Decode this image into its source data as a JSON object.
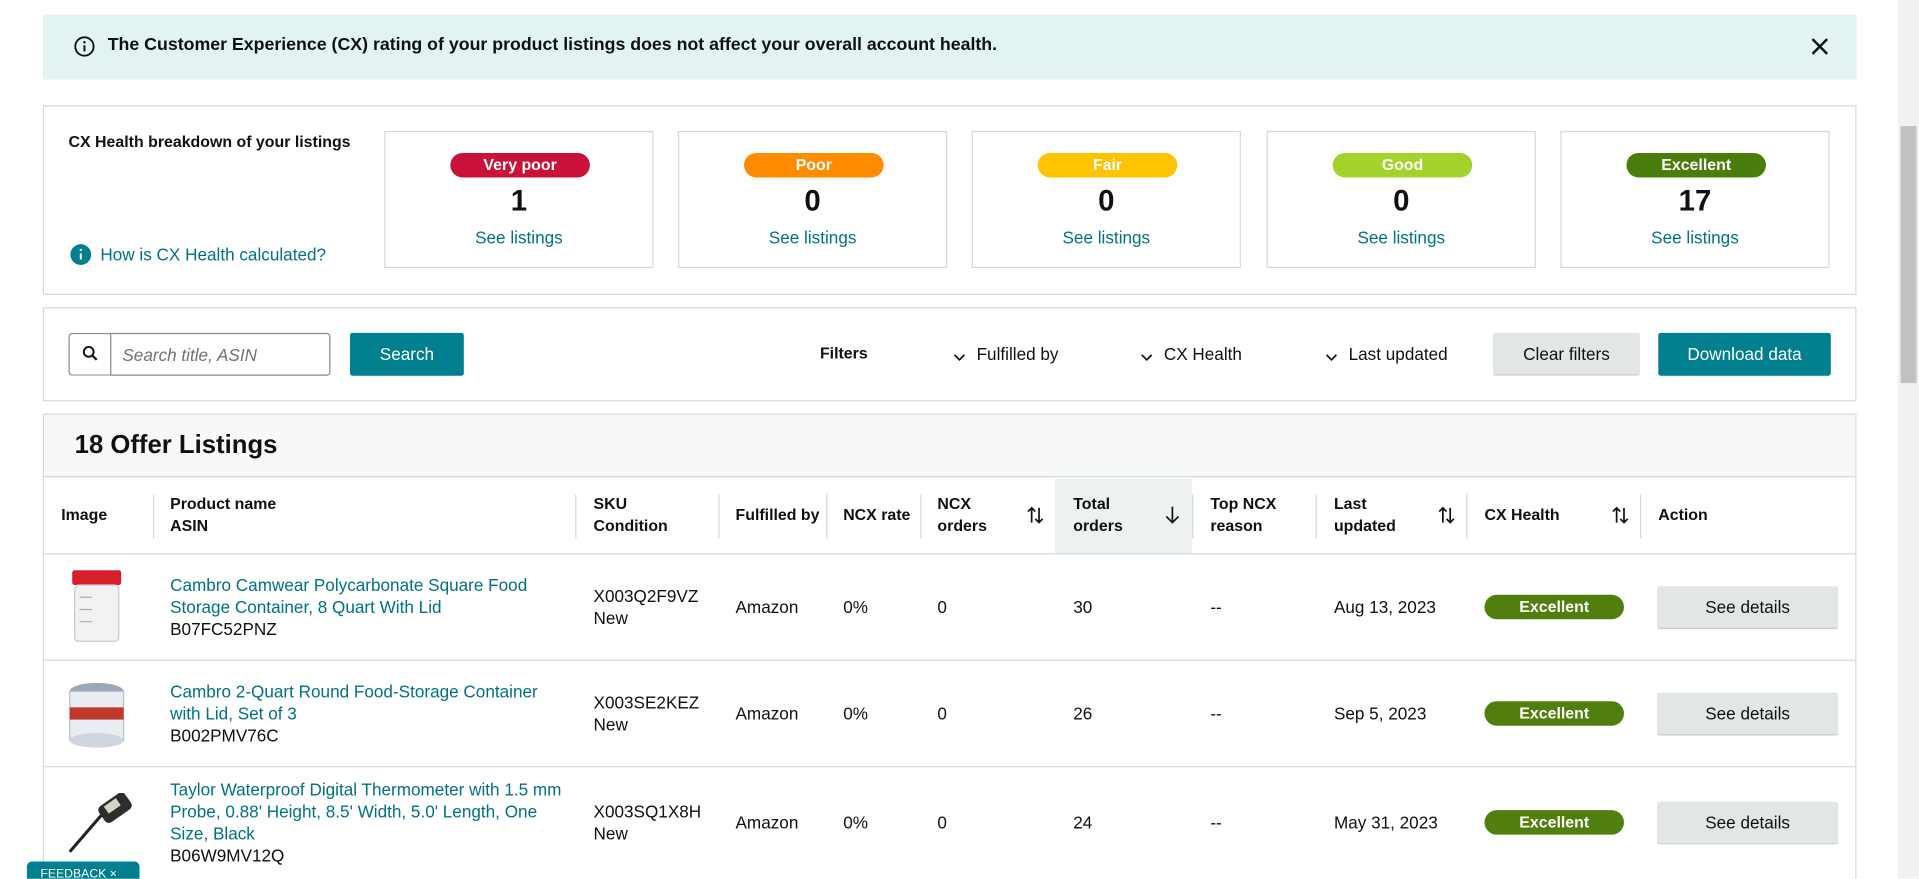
{
  "banner": {
    "text": "The Customer Experience (CX) rating of your product listings does not affect your overall account health."
  },
  "breakdown": {
    "title": "CX Health breakdown of your listings",
    "help_link": "How is CX Health calculated?",
    "cards": [
      {
        "label": "Very poor",
        "count": "1",
        "link": "See listings"
      },
      {
        "label": "Poor",
        "count": "0",
        "link": "See listings"
      },
      {
        "label": "Fair",
        "count": "0",
        "link": "See listings"
      },
      {
        "label": "Good",
        "count": "0",
        "link": "See listings"
      },
      {
        "label": "Excellent",
        "count": "17",
        "link": "See listings"
      }
    ]
  },
  "toolbar": {
    "search_placeholder": "Search title, ASIN",
    "search_button": "Search",
    "filters_label": "Filters",
    "filters": [
      "Fulfilled by",
      "CX Health",
      "Last updated"
    ],
    "clear_filters": "Clear filters",
    "download": "Download data"
  },
  "listings": {
    "title": "18 Offer Listings",
    "headers": [
      [
        "Image"
      ],
      [
        "Product name",
        "ASIN"
      ],
      [
        "SKU",
        "Condition"
      ],
      [
        "Fulfilled by"
      ],
      [
        "NCX rate"
      ],
      [
        "NCX",
        "orders"
      ],
      [
        "Total",
        "orders"
      ],
      [
        "Top NCX",
        "reason"
      ],
      [
        "Last",
        "updated"
      ],
      [
        "CX Health"
      ],
      [
        "Action"
      ]
    ],
    "rows": [
      {
        "product_name": "Cambro Camwear Polycarbonate Square Food Storage Container, 8 Quart With Lid",
        "asin": "B07FC52PNZ",
        "sku": "X003Q2F9VZ",
        "condition": "New",
        "fulfilled_by": "Amazon",
        "ncx_rate": "0%",
        "ncx_orders": "0",
        "total_orders": "30",
        "top_ncx_reason": "--",
        "last_updated": "Aug 13, 2023",
        "cx_health": "Excellent",
        "action": "See details"
      },
      {
        "product_name": "Cambro 2-Quart Round Food-Storage Container with Lid, Set of 3",
        "asin": "B002PMV76C",
        "sku": "X003SE2KEZ",
        "condition": "New",
        "fulfilled_by": "Amazon",
        "ncx_rate": "0%",
        "ncx_orders": "0",
        "total_orders": "26",
        "top_ncx_reason": "--",
        "last_updated": "Sep 5, 2023",
        "cx_health": "Excellent",
        "action": "See details"
      },
      {
        "product_name": "Taylor Waterproof Digital Thermometer with 1.5 mm Probe, 0.88' Height, 8.5' Width, 5.0' Length, One Size, Black",
        "asin": "B06W9MV12Q",
        "sku": "X003SQ1X8H",
        "condition": "New",
        "fulfilled_by": "Amazon",
        "ncx_rate": "0%",
        "ncx_orders": "0",
        "total_orders": "24",
        "top_ncx_reason": "--",
        "last_updated": "May 31, 2023",
        "cx_health": "Excellent",
        "action": "See details"
      }
    ]
  },
  "feedback": "FEEDBACK"
}
